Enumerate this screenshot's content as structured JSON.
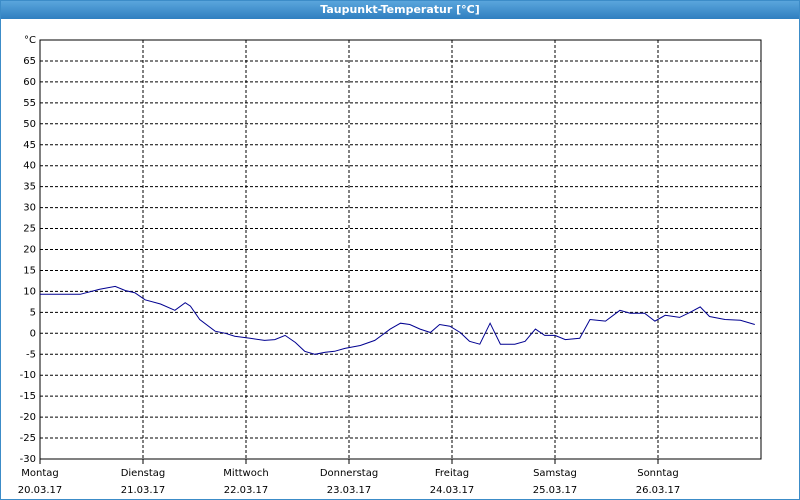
{
  "chart_data": {
    "type": "line",
    "title": "Taupunkt-Temperatur [°C]",
    "x": [
      0,
      0.19,
      0.39,
      0.58,
      0.73,
      0.83,
      0.92,
      1.02,
      1.17,
      1.31,
      1.41,
      1.46,
      1.55,
      1.7,
      1.8,
      1.89,
      2.04,
      2.18,
      2.28,
      2.38,
      2.48,
      2.57,
      2.67,
      2.77,
      2.86,
      2.96,
      3.11,
      3.25,
      3.4,
      3.5,
      3.59,
      3.69,
      3.79,
      3.88,
      3.98,
      4.08,
      4.17,
      4.27,
      4.37,
      4.47,
      4.61,
      4.71,
      4.81,
      4.9,
      5.0,
      5.1,
      5.24,
      5.34,
      5.49,
      5.63,
      5.73,
      5.87,
      5.97,
      6.07,
      6.21,
      6.31,
      6.41,
      6.5,
      6.65,
      6.8,
      6.94
    ],
    "series": [
      {
        "color": "#000090",
        "values": [
          9.3,
          9.3,
          9.3,
          10.5,
          11.2,
          10.2,
          9.7,
          8,
          7,
          5.5,
          7.3,
          6.5,
          3.3,
          0.5,
          0,
          -0.7,
          -1.2,
          -1.7,
          -1.5,
          -0.5,
          -2.2,
          -4.3,
          -5,
          -4.5,
          -4.3,
          -3.6,
          -2.9,
          -1.7,
          1,
          2.4,
          2.1,
          1,
          0.2,
          2.1,
          1.7,
          0.2,
          -1.9,
          -2.6,
          2.4,
          -2.6,
          -2.6,
          -1.9,
          1,
          -0.5,
          -0.5,
          -1.5,
          -1.2,
          3.3,
          2.9,
          5.5,
          4.8,
          4.8,
          2.9,
          4.3,
          3.8,
          5,
          6.3,
          4,
          3.3,
          3.1,
          2.1
        ]
      }
    ],
    "xlim": [
      0,
      7
    ],
    "xticks": [
      {
        "value": 0,
        "label": "Montag",
        "date": "20.03.17"
      },
      {
        "value": 1,
        "label": "Dienstag",
        "date": "21.03.17"
      },
      {
        "value": 2,
        "label": "Mittwoch",
        "date": "22.03.17"
      },
      {
        "value": 3,
        "label": "Donnerstag",
        "date": "23.03.17"
      },
      {
        "value": 4,
        "label": "Freitag",
        "date": "24.03.17"
      },
      {
        "value": 5,
        "label": "Samstag",
        "date": "25.03.17"
      },
      {
        "value": 6,
        "label": "Sonntag",
        "date": "26.03.17"
      }
    ],
    "ylim": [
      -30,
      70
    ],
    "yticks": [
      -30,
      -25,
      -20,
      -15,
      -10,
      -5,
      0,
      5,
      10,
      15,
      20,
      25,
      30,
      35,
      40,
      45,
      50,
      55,
      60,
      65,
      {
        "value": 70,
        "label": "°C"
      }
    ],
    "grid": true
  }
}
